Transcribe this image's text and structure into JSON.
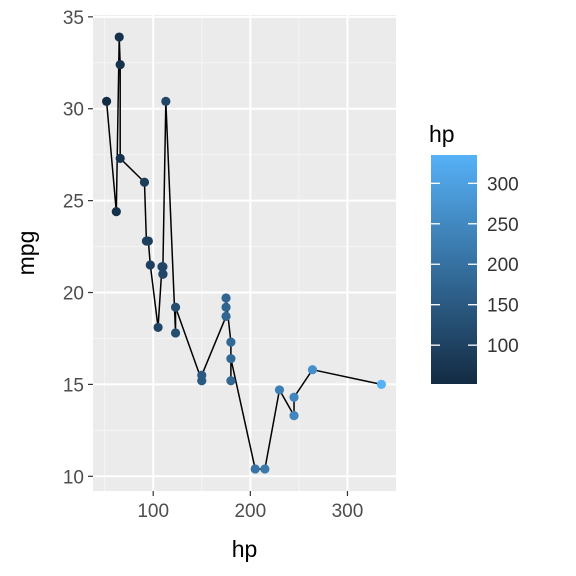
{
  "chart_data": {
    "type": "scatter",
    "connect_points": true,
    "xlabel": "hp",
    "ylabel": "mpg",
    "xlim": [
      38,
      350
    ],
    "ylim": [
      9.2,
      35.1
    ],
    "x_ticks": [
      100,
      200,
      300
    ],
    "y_ticks": [
      10,
      15,
      20,
      25,
      30,
      35
    ],
    "grid": true,
    "color_scale": {
      "title": "hp",
      "range": [
        52,
        335
      ],
      "ticks": [
        100,
        150,
        200,
        250,
        300
      ],
      "low_color": "#132B43",
      "high_color": "#56B1F7",
      "placement": "right"
    },
    "line_color": "#000000",
    "points": [
      {
        "x": 52,
        "y": 30.4
      },
      {
        "x": 62,
        "y": 24.4
      },
      {
        "x": 65,
        "y": 33.9
      },
      {
        "x": 66,
        "y": 32.4
      },
      {
        "x": 66,
        "y": 27.3
      },
      {
        "x": 91,
        "y": 26.0
      },
      {
        "x": 93,
        "y": 22.8
      },
      {
        "x": 95,
        "y": 22.8
      },
      {
        "x": 97,
        "y": 21.5
      },
      {
        "x": 105,
        "y": 18.1
      },
      {
        "x": 109,
        "y": 21.4
      },
      {
        "x": 110,
        "y": 21.0
      },
      {
        "x": 110,
        "y": 21.0
      },
      {
        "x": 110,
        "y": 21.4
      },
      {
        "x": 113,
        "y": 30.4
      },
      {
        "x": 123,
        "y": 17.8
      },
      {
        "x": 123,
        "y": 19.2
      },
      {
        "x": 150,
        "y": 15.2
      },
      {
        "x": 150,
        "y": 15.5
      },
      {
        "x": 175,
        "y": 18.7
      },
      {
        "x": 175,
        "y": 19.2
      },
      {
        "x": 175,
        "y": 19.7
      },
      {
        "x": 180,
        "y": 17.3
      },
      {
        "x": 180,
        "y": 15.2
      },
      {
        "x": 180,
        "y": 16.4
      },
      {
        "x": 205,
        "y": 10.4
      },
      {
        "x": 215,
        "y": 10.4
      },
      {
        "x": 230,
        "y": 14.7
      },
      {
        "x": 245,
        "y": 13.3
      },
      {
        "x": 245,
        "y": 14.3
      },
      {
        "x": 264,
        "y": 15.8
      },
      {
        "x": 335,
        "y": 15.0
      }
    ]
  }
}
